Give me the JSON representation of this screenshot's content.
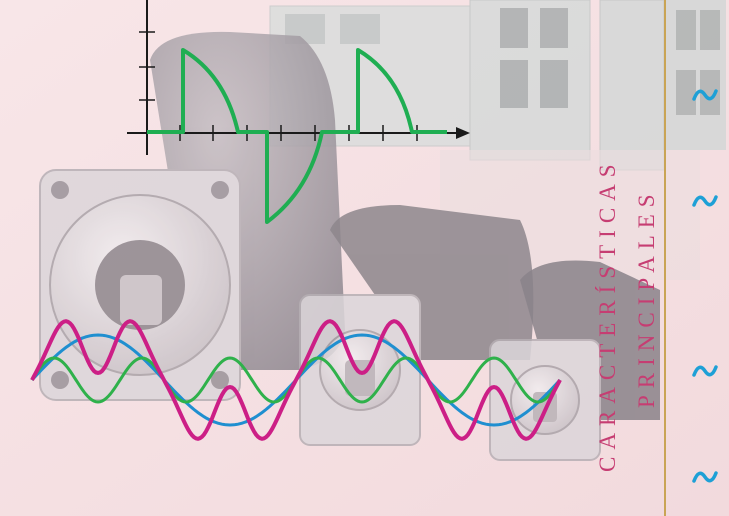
{
  "title": {
    "line1": "CARACTERÍSTICAS",
    "line2": "PRINCIPALES"
  },
  "colors": {
    "background": "#f6e3e6",
    "title": "#c63d72",
    "rule": "#c9a455",
    "tilde": "#1ea0d6",
    "wave_blue": "#1f8fd0",
    "wave_green": "#2fb14b",
    "wave_magenta": "#cc1f86",
    "square_wave": "#1fae52",
    "axis": "#1a1a1a",
    "motor_body": "#a8a2a8",
    "driver_unit": "#d4dbdc"
  },
  "icons": [
    "tilde-icon",
    "axis-arrow-icon"
  ]
}
